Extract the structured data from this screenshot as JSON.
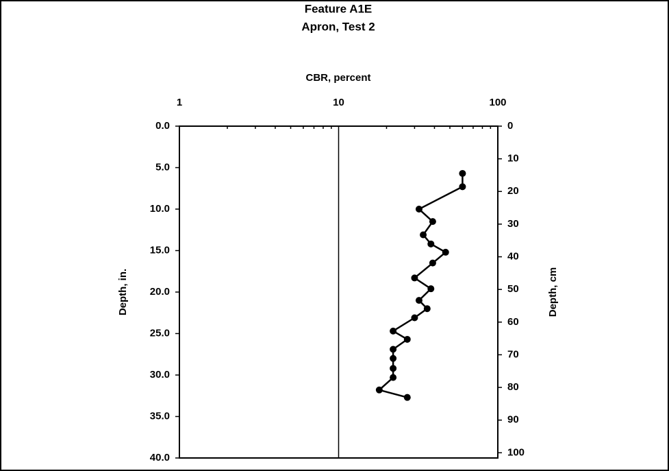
{
  "chart_data": {
    "type": "line",
    "title": "Feature A1E",
    "subtitle": "Apron, Test 2",
    "x_label": "CBR, percent",
    "y_label": "Depth, in.",
    "y2_label": "Depth, cm",
    "x_scale": "log",
    "xlim": [
      1,
      100
    ],
    "xticks": [
      1,
      10,
      100
    ],
    "grid": true,
    "ylim": [
      0,
      40
    ],
    "y_inverted": true,
    "yticks": [
      {
        "value": 0,
        "label": "0.0"
      },
      {
        "value": 5,
        "label": "5.0"
      },
      {
        "value": 10,
        "label": "10.0"
      },
      {
        "value": 15,
        "label": "15.0"
      },
      {
        "value": 20,
        "label": "20.0"
      },
      {
        "value": 25,
        "label": "25.0"
      },
      {
        "value": 30,
        "label": "30.0"
      },
      {
        "value": 35,
        "label": "35.0"
      },
      {
        "value": 40,
        "label": "40.0"
      }
    ],
    "y2lim": [
      0,
      101.6
    ],
    "y2ticks": [
      0,
      10,
      20,
      30,
      40,
      50,
      60,
      70,
      80,
      90,
      100
    ],
    "color": "#000000",
    "x": [
      60,
      60,
      32,
      39,
      34,
      38,
      47,
      39,
      30,
      38,
      32,
      36,
      30,
      22,
      27,
      22,
      22,
      22,
      22,
      18,
      27
    ],
    "values": [
      5.7,
      7.3,
      10.0,
      11.5,
      13.1,
      14.2,
      15.2,
      16.5,
      18.3,
      19.6,
      21.0,
      22.0,
      23.1,
      24.7,
      25.7,
      26.9,
      28.0,
      29.2,
      30.3,
      31.8,
      32.7
    ]
  }
}
